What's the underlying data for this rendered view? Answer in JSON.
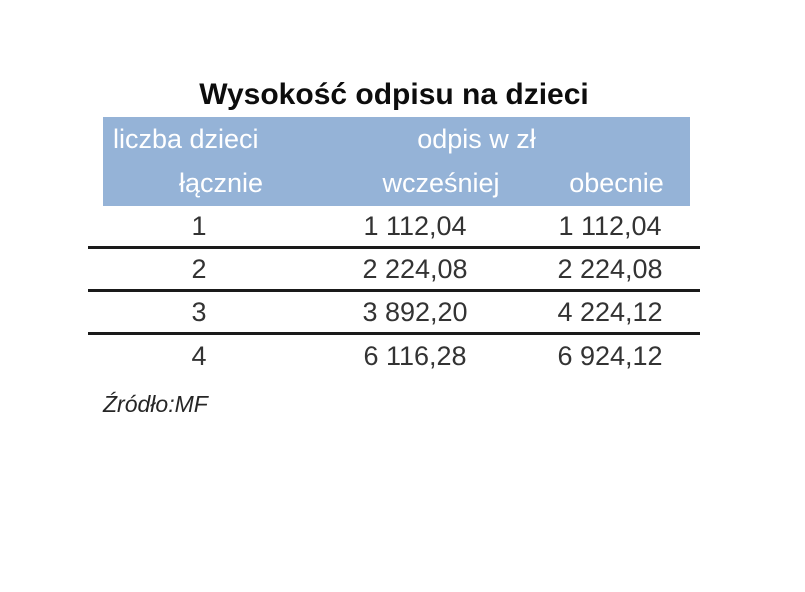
{
  "title": "Wysokość odpisu na dzieci",
  "table": {
    "header": {
      "children_label": "liczba dzieci",
      "children_sub": "łącznie",
      "deduction_label": "odpis w zł",
      "before_label": "wcześniej",
      "now_label": "obecnie"
    },
    "rows": [
      {
        "children": "1",
        "before": "1 112,04",
        "now": "1 112,04"
      },
      {
        "children": "2",
        "before": "2 224,08",
        "now": "2 224,08"
      },
      {
        "children": "3",
        "before": "3 892,20",
        "now": "4 224,12"
      },
      {
        "children": "4",
        "before": "6 116,28",
        "now": "6 924,12"
      }
    ]
  },
  "source_note": "Źródło:MF",
  "colors": {
    "header_bg": "#95B3D7",
    "header_text": "#FFFFFF",
    "rule": "#1A1A1A",
    "body_text": "#333333",
    "title_text": "#0D0D0D"
  },
  "chart_data": {
    "type": "table",
    "title": "Wysokość odpisu na dzieci",
    "columns": [
      "liczba dzieci łącznie",
      "odpis w zł — wcześniej",
      "odpis w zł — obecnie"
    ],
    "rows": [
      [
        "1",
        "1 112,04",
        "1 112,04"
      ],
      [
        "2",
        "2 224,08",
        "2 224,08"
      ],
      [
        "3",
        "3 892,20",
        "4 224,12"
      ],
      [
        "4",
        "6 116,28",
        "6 924,12"
      ]
    ],
    "units": "zł",
    "source": "Źródło:MF"
  }
}
